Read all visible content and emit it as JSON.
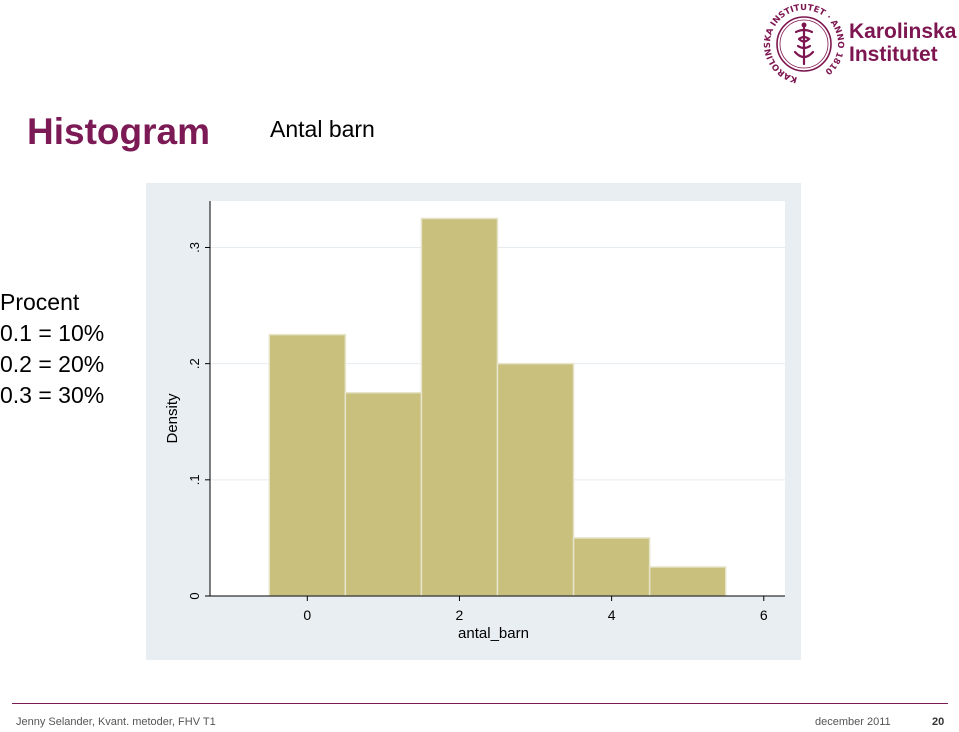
{
  "header": {
    "title": "Histogram",
    "subtitle": "Antal barn",
    "logo": {
      "icon": "karolinska-seal-icon",
      "text_line1": "Karolinska",
      "text_line2": "Institutet",
      "seal_text": "KAROLINSKA INSTITUTET · ANNO 1810"
    }
  },
  "legend": {
    "heading": "Procent",
    "lines": [
      "0.1 = 10%",
      "0.2 = 20%",
      "0.3 = 30%"
    ]
  },
  "chart_data": {
    "type": "bar",
    "xlabel": "antal_barn",
    "ylabel": "Density",
    "bins": [
      {
        "from": -0.5,
        "to": 0.5,
        "density": 0.225
      },
      {
        "from": 0.5,
        "to": 1.5,
        "density": 0.175
      },
      {
        "from": 1.5,
        "to": 2.5,
        "density": 0.325
      },
      {
        "from": 2.5,
        "to": 3.5,
        "density": 0.2
      },
      {
        "from": 3.5,
        "to": 4.5,
        "density": 0.05
      },
      {
        "from": 4.5,
        "to": 5.5,
        "density": 0.025
      }
    ],
    "xticks": [
      0,
      2,
      4,
      6
    ],
    "xtick_labels": [
      "0",
      "2",
      "4",
      "6"
    ],
    "yticks": [
      0,
      0.1,
      0.2,
      0.3
    ],
    "ytick_labels": [
      "0",
      ".1",
      ".2",
      ".3"
    ],
    "xlim": [
      -1.2,
      6.2
    ],
    "ylim": [
      0,
      0.34
    ],
    "grid": true,
    "colors": {
      "bar_fill": "#c9c07d",
      "bar_edge": "#e7e4cc",
      "plot_bg": "#ffffff",
      "panel_bg": "#e9eef3",
      "grid": "#e6ebf0",
      "axis": "#000000"
    }
  },
  "footer": {
    "left": "Jenny Selander, Kvant. metoder, FHV T1",
    "date": "december 2011",
    "page": "20"
  },
  "colors": {
    "accent": "#7b1a55",
    "footer_text": "#555555"
  }
}
